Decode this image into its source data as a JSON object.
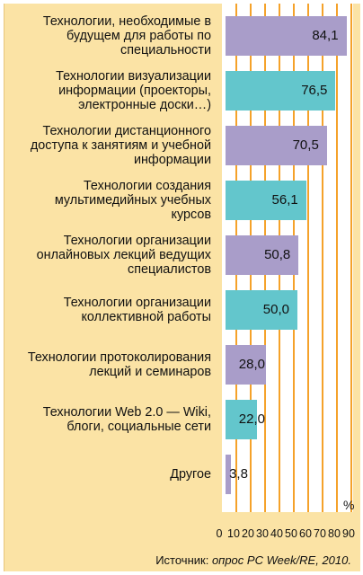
{
  "chart_data": {
    "type": "bar",
    "orientation": "horizontal",
    "categories": [
      "Технологии, необходимые в\nбудущем для работы по\nспециальности",
      "Технологии визуализации\nинформации (проекторы,\nэлектронные доски…)",
      "Технологии дистанционного\nдоступа к занятиям и учебной\nинформации",
      "Технологии создания\nмультимедийных учебных\nкурсов",
      "Технологии организации\nонлайновых лекций ведущих\nспециалистов",
      "Технологии организации\nколлективной работы",
      "Технологии протоколирования\nлекций и семинаров",
      "Технологии Web 2.0 — Wiki,\nблоги, социальные сети",
      "Другое"
    ],
    "values": [
      84.1,
      76.5,
      70.5,
      56.1,
      50.8,
      50.0,
      28.0,
      22.0,
      3.8
    ],
    "value_labels": [
      "84,1",
      "76,5",
      "70,5",
      "56,1",
      "50,8",
      "50,0",
      "28,0",
      "22,0",
      "3,8"
    ],
    "bar_colors": [
      "#a99dc9",
      "#63c6cc",
      "#a99dc9",
      "#63c6cc",
      "#a99dc9",
      "#63c6cc",
      "#a99dc9",
      "#63c6cc",
      "#a99dc9"
    ],
    "xlim": [
      0,
      90
    ],
    "xticks": [
      "0",
      "10",
      "20",
      "30",
      "40",
      "50",
      "60",
      "70",
      "80",
      "90"
    ],
    "unit": "%",
    "grid": true,
    "gridline_color": "#f5a22a",
    "background_color": "#fbe3a5"
  },
  "source": {
    "prefix": "Источник: ",
    "text": "опрос PC Week/RE, 2010."
  }
}
